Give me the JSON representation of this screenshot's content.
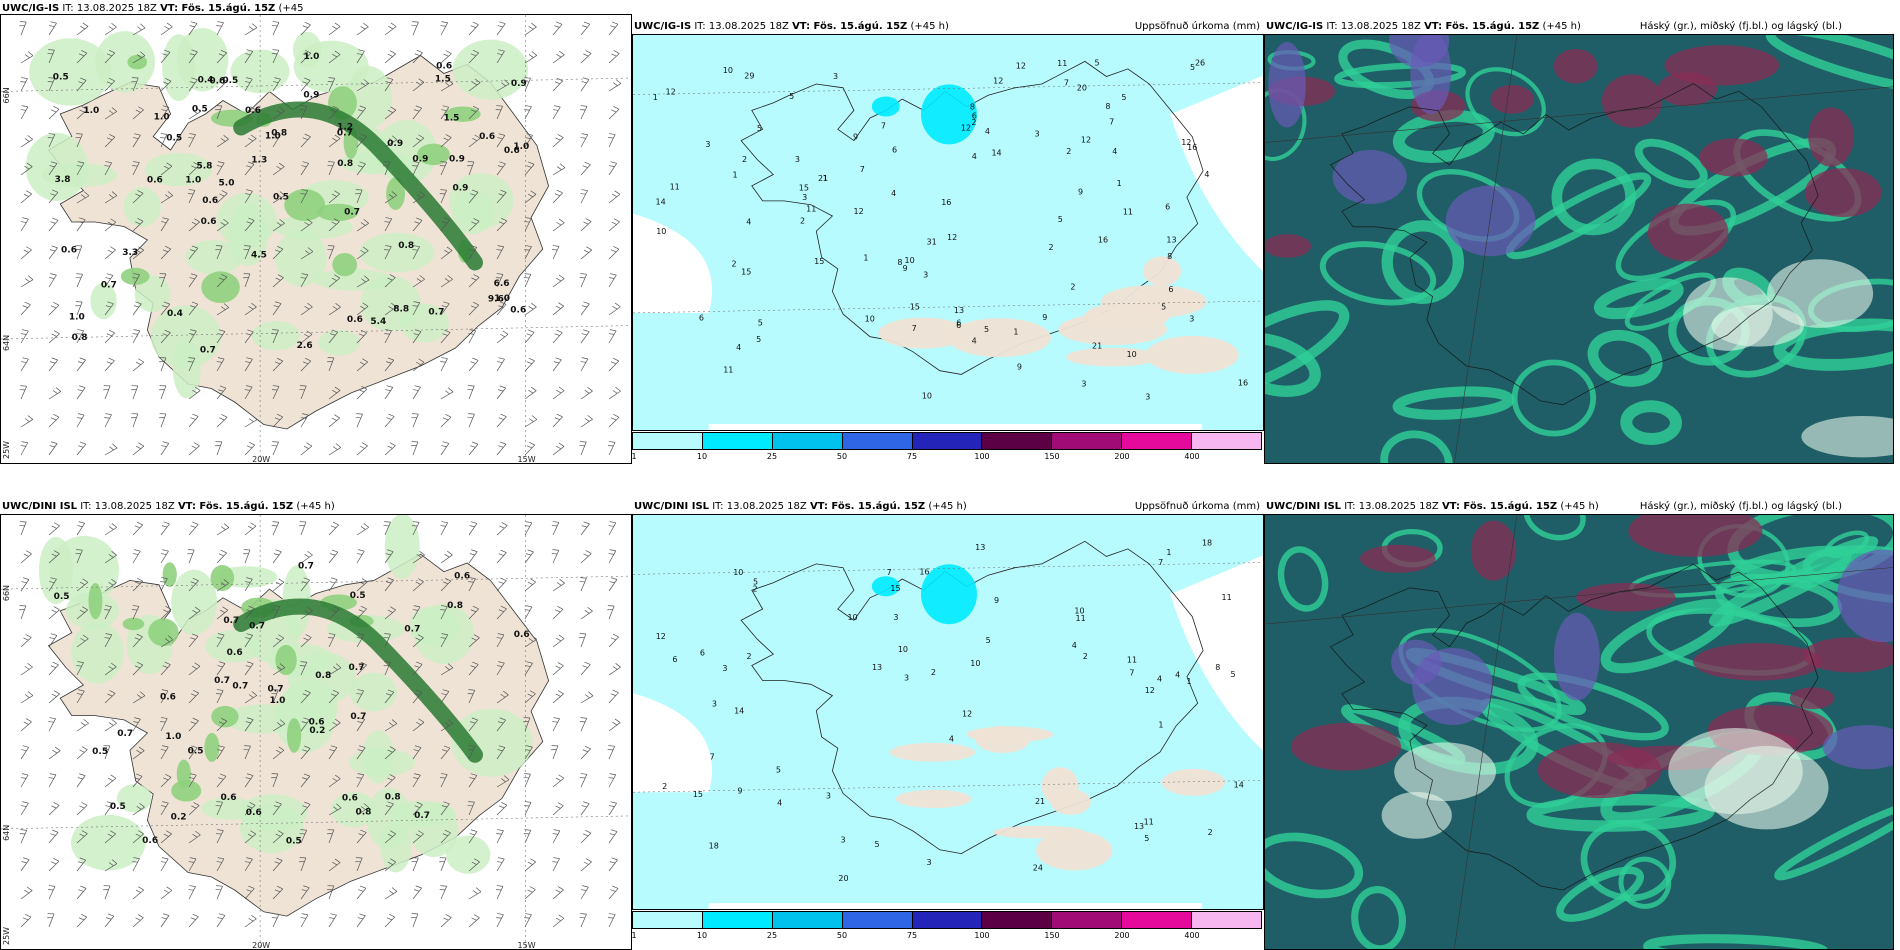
{
  "rows": [
    {
      "model": "UWC/IG-IS",
      "init": "IT: 13.08.2025 18Z",
      "valid": "VT: Fös. 15.ágú. 15Z",
      "lead": "(+45 h)",
      "lead_wrapped_first": "(+45",
      "lead_wrapped_second": "h)",
      "precip_values": [
        "0.5",
        "0.6",
        "0.6",
        "0.9",
        "0.4",
        "0.6",
        "0.9",
        "0.9",
        "0.6",
        "1.2",
        "1.0",
        "0.8",
        "0.5",
        "0.6",
        "0.5",
        "0.9",
        "0.8",
        "0.6",
        "1.5",
        "8.8",
        "1.5",
        "3.8",
        "9.6",
        "4.5",
        "0.7",
        "5.4",
        "5.0",
        "0.9",
        "5.8",
        "6.6",
        "1.0",
        "3.3",
        "2.6",
        "0.5",
        "1.0",
        "1.3",
        "0.8",
        "0.7",
        "1.0",
        "0.6",
        "1.0",
        "0.9",
        "1.0",
        "0.4",
        "0.6",
        "0.6",
        "1.0",
        "1.0",
        "0.7",
        "0.6",
        "0.8",
        "0.7",
        "0.5",
        "0.7",
        "0.6"
      ],
      "accum_values": [
        "5",
        "6",
        "3",
        "10",
        "9",
        "7",
        "6",
        "4",
        "2",
        "12",
        "16",
        "15",
        "16",
        "12",
        "11",
        "21",
        "12",
        "11",
        "14",
        "12",
        "16",
        "3",
        "10",
        "15",
        "8",
        "10",
        "14",
        "9",
        "26",
        "21",
        "31",
        "29",
        "15",
        "15",
        "16",
        "10",
        "12",
        "11",
        "20",
        "10",
        "11",
        "6",
        "13",
        "7",
        "12",
        "9",
        "6",
        "6",
        "5",
        "10",
        "13",
        "8",
        "3",
        "4",
        "2",
        "11",
        "7",
        "5",
        "3",
        "9",
        "8",
        "3",
        "2",
        "4",
        "7",
        "4",
        "12",
        "5",
        "3",
        "2",
        "1",
        "5",
        "3",
        "4",
        "3",
        "12",
        "6",
        "1",
        "4",
        "4",
        "5",
        "5",
        "2",
        "2",
        "1",
        "8",
        "9",
        "5",
        "4",
        "5",
        "1",
        "2",
        "1",
        "1",
        "5",
        "3",
        "6",
        "7"
      ]
    },
    {
      "model": "UWC/DINI ISL",
      "init": "IT: 13.08.2025 18Z",
      "valid": "VT: Fös. 15.ágú. 15Z",
      "lead": "(+45 h)",
      "precip_values": [
        "0.6",
        "0.8",
        "0.8",
        "0.8",
        "0.5",
        "0.6",
        "0.7",
        "0.5",
        "0.2",
        "0.7",
        "0.7",
        "0.6",
        "0.5",
        "0.5",
        "0.6",
        "1.0",
        "0.8",
        "0.5",
        "0.7",
        "0.5",
        "1.0",
        "0.6",
        "0.6",
        "0.7",
        "0.7",
        "0.2",
        "0.7",
        "0.7",
        "0.7",
        "0.6",
        "0.7",
        "0.7",
        "0.6",
        "0.6"
      ],
      "accum_values": [
        "2",
        "5",
        "3",
        "3",
        "5",
        "4",
        "2",
        "6",
        "3",
        "7",
        "11",
        "15",
        "13",
        "9",
        "9",
        "13",
        "21",
        "14",
        "11",
        "5",
        "18",
        "16",
        "18",
        "20",
        "24",
        "10",
        "3",
        "11",
        "5",
        "10",
        "12",
        "12",
        "15",
        "12",
        "10",
        "7",
        "13",
        "4",
        "10",
        "2",
        "1",
        "3",
        "2",
        "1",
        "5",
        "3",
        "4",
        "6",
        "4",
        "14",
        "10",
        "11",
        "7",
        "7",
        "8",
        "4",
        "5",
        "2",
        "3",
        "2",
        "1"
      ]
    }
  ],
  "panel_titles": {
    "precip": "Uppsöfnuð úrkoma (mm)",
    "clouds": "Háský (gr.), miðský (fj.bl.) og lágský (bl.)"
  },
  "axis_labels": {
    "lon_20": "20W",
    "lon_15": "15W",
    "lon_25": "25W",
    "lat_66": "66N",
    "lat_64": "64N"
  },
  "legend": {
    "ticks": [
      "1",
      "10",
      "25",
      "50",
      "75",
      "100",
      "150",
      "200",
      "400"
    ],
    "colors": [
      "#b7fbff",
      "#00eaff",
      "#00c2ec",
      "#2f66e6",
      "#2424b8",
      "#5c0045",
      "#a10b75",
      "#e60a9c",
      "#f6b6f0"
    ]
  },
  "colors": {
    "land": "#efe3d5",
    "precip_light": "#cdeec4",
    "precip_mid": "#8fd07e",
    "precip_dark": "#2a7a32",
    "accum_fill": "#b7fbff",
    "cloud_low": "#1f5e66",
    "cloud_mid": "#2fcf98",
    "cloud_high": "#8a2e55",
    "cloud_blue": "#6a5ab8"
  }
}
